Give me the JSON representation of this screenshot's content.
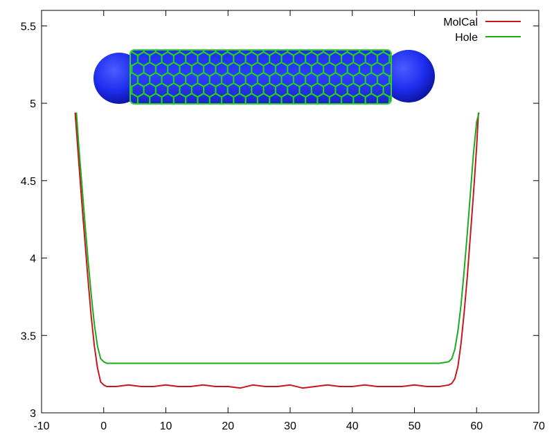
{
  "chart_data": {
    "type": "line",
    "title": "",
    "xlabel": "",
    "ylabel": "",
    "xlim": [
      -10,
      70
    ],
    "ylim": [
      3,
      5.6
    ],
    "x_ticks": [
      -10,
      0,
      10,
      20,
      30,
      40,
      50,
      60,
      70
    ],
    "x_tick_labels": [
      "-10",
      "0",
      "10",
      "20",
      "30",
      "40",
      "50",
      "60",
      "70"
    ],
    "y_ticks": [
      3,
      3.5,
      4,
      4.5,
      5,
      5.5
    ],
    "y_tick_labels": [
      "3",
      "3.5",
      "4",
      "4.5",
      "5",
      "5.5"
    ],
    "grid": false,
    "legend_position": "top-right",
    "inset_image": "carbon-nanotube-capped-with-blue-spheres",
    "series": [
      {
        "name": "MolCal",
        "color": "#c8151b",
        "x": [
          -4.6,
          -4.0,
          -3.5,
          -3.0,
          -2.5,
          -2.0,
          -1.5,
          -1.0,
          -0.5,
          0.0,
          0.5,
          2,
          4,
          6,
          8,
          10,
          12,
          14,
          16,
          18,
          20,
          22,
          24,
          26,
          28,
          30,
          32,
          34,
          36,
          38,
          40,
          42,
          44,
          46,
          48,
          50,
          52,
          54,
          55.5,
          56.0,
          56.5,
          57.0,
          57.5,
          58.0,
          58.5,
          59.0,
          59.5,
          60.0,
          60.3
        ],
        "y": [
          4.94,
          4.62,
          4.35,
          4.1,
          3.85,
          3.62,
          3.43,
          3.29,
          3.2,
          3.18,
          3.17,
          3.17,
          3.18,
          3.17,
          3.17,
          3.18,
          3.17,
          3.17,
          3.18,
          3.17,
          3.17,
          3.16,
          3.18,
          3.17,
          3.17,
          3.18,
          3.16,
          3.17,
          3.18,
          3.17,
          3.17,
          3.18,
          3.17,
          3.17,
          3.17,
          3.18,
          3.17,
          3.17,
          3.18,
          3.19,
          3.22,
          3.3,
          3.45,
          3.65,
          3.88,
          4.15,
          4.42,
          4.72,
          4.94
        ]
      },
      {
        "name": "Hole",
        "color": "#1aaa1a",
        "x": [
          -4.4,
          -4.0,
          -3.5,
          -3.0,
          -2.5,
          -2.0,
          -1.5,
          -1.0,
          -0.5,
          0.0,
          0.5,
          2,
          5,
          10,
          15,
          20,
          25,
          30,
          35,
          40,
          45,
          50,
          54,
          55.5,
          56.0,
          56.5,
          57.0,
          57.5,
          58.0,
          58.5,
          59.0,
          59.5,
          60.0,
          60.4
        ],
        "y": [
          4.94,
          4.72,
          4.47,
          4.22,
          3.98,
          3.76,
          3.57,
          3.43,
          3.35,
          3.33,
          3.32,
          3.32,
          3.32,
          3.32,
          3.32,
          3.32,
          3.32,
          3.32,
          3.32,
          3.32,
          3.32,
          3.32,
          3.32,
          3.33,
          3.35,
          3.41,
          3.53,
          3.7,
          3.92,
          4.16,
          4.42,
          4.68,
          4.88,
          4.94
        ]
      }
    ]
  }
}
